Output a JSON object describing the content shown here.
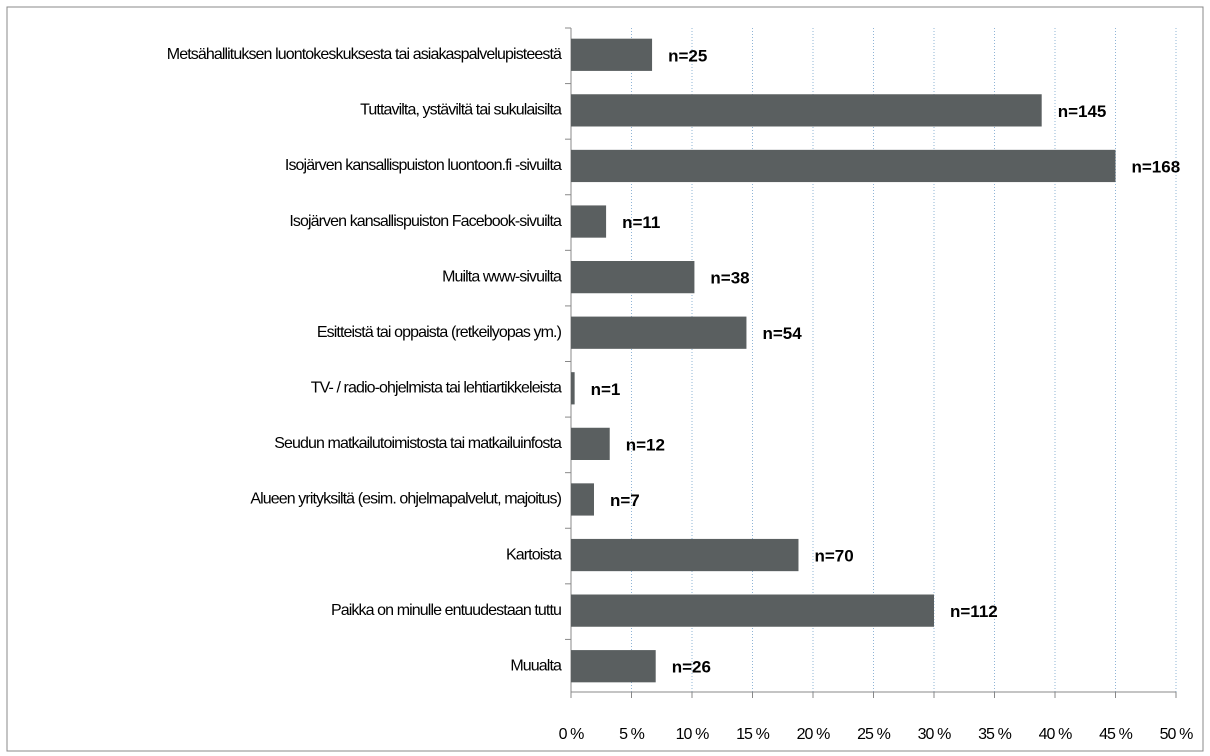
{
  "chart_data": {
    "type": "bar",
    "orientation": "horizontal",
    "categories": [
      "Metsähallituksen luontokeskuksesta tai asiakaspalvelupisteestä",
      "Tuttavilta, ystäviltä tai sukulaisilta",
      "Isojärven kansallispuiston luontoon.fi -sivuilta",
      "Isojärven kansallispuiston Facebook-sivuilta",
      "Muilta www-sivuilta",
      "Esitteistä tai oppaista (retkeilyopas ym.)",
      "TV- / radio-ohjelmista tai lehtiartikkeleista",
      "Seudun matkailutoimistosta tai matkailuinfosta",
      "Alueen yrityksiltä (esim. ohjelmapalvelut, majoitus)",
      "Kartoista",
      "Paikka on minulle entuudestaan tuttu",
      "Muualta"
    ],
    "values": [
      6.7,
      38.9,
      45,
      2.9,
      10.2,
      14.5,
      0.3,
      3.2,
      1.9,
      18.8,
      30,
      7.0
    ],
    "count_labels": [
      "n=25",
      "n=145",
      "n=168",
      "n=11",
      "n=38",
      "n=54",
      "n=1",
      "n=12",
      "n=7",
      "n=70",
      "n=112",
      "n=26"
    ],
    "color": "#5a5f60",
    "xlim": [
      0,
      50
    ],
    "xticks": [
      {
        "value": 0,
        "label": "0 %"
      },
      {
        "value": 5,
        "label": "5 %"
      },
      {
        "value": 10,
        "label": "10 %"
      },
      {
        "value": 15,
        "label": "15 %"
      },
      {
        "value": 20,
        "label": "20 %"
      },
      {
        "value": 25,
        "label": "25 %"
      },
      {
        "value": 30,
        "label": "30 %"
      },
      {
        "value": 35,
        "label": "35 %"
      },
      {
        "value": 40,
        "label": "40 %"
      },
      {
        "value": 45,
        "label": "45 %"
      },
      {
        "value": 50,
        "label": "50 %"
      }
    ],
    "grid": true
  }
}
